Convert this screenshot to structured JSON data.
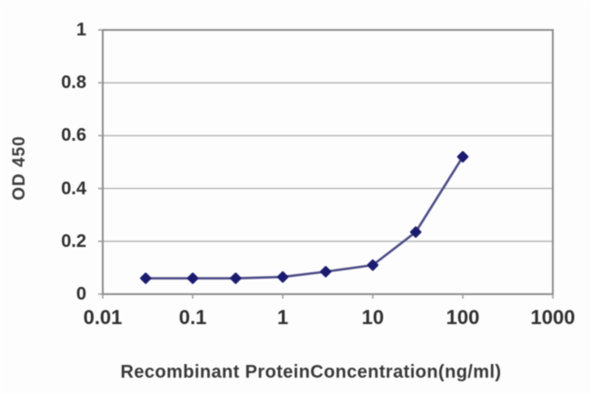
{
  "figure": {
    "background": "#fdfdfd",
    "description": "ELISA standard curve line plot"
  },
  "chart_data": {
    "type": "line",
    "title": "",
    "xlabel": "Recombinant ProteinConcentration(ng/ml)",
    "ylabel": "OD 450",
    "x_scale": "log",
    "xlim": [
      0.01,
      1000
    ],
    "ylim": [
      0,
      1
    ],
    "x_ticks": [
      0.01,
      0.1,
      1,
      10,
      100,
      1000
    ],
    "x_tick_labels": [
      "0.01",
      "0.1",
      "1",
      "10",
      "100",
      "1000"
    ],
    "y_ticks": [
      0,
      0.2,
      0.4,
      0.6,
      0.8,
      1
    ],
    "y_tick_labels": [
      "0",
      "0.2",
      "0.4",
      "0.6",
      "0.8",
      "1"
    ],
    "grid": "horizontal",
    "legend_position": "none",
    "series": [
      {
        "name": "OD 450",
        "x": [
          0.03,
          0.1,
          0.3,
          1,
          3,
          10,
          30,
          100
        ],
        "y": [
          0.06,
          0.06,
          0.06,
          0.065,
          0.085,
          0.11,
          0.235,
          0.52
        ],
        "marker": "diamond"
      }
    ],
    "colors": {
      "line": "#4c4c86",
      "marker": "#1b1b70",
      "gridline": "#b2b2b2",
      "plot_border": "#8c8c8c",
      "tick_mark": "#9a9a9a",
      "axis_text": "#2f2f2f"
    }
  }
}
